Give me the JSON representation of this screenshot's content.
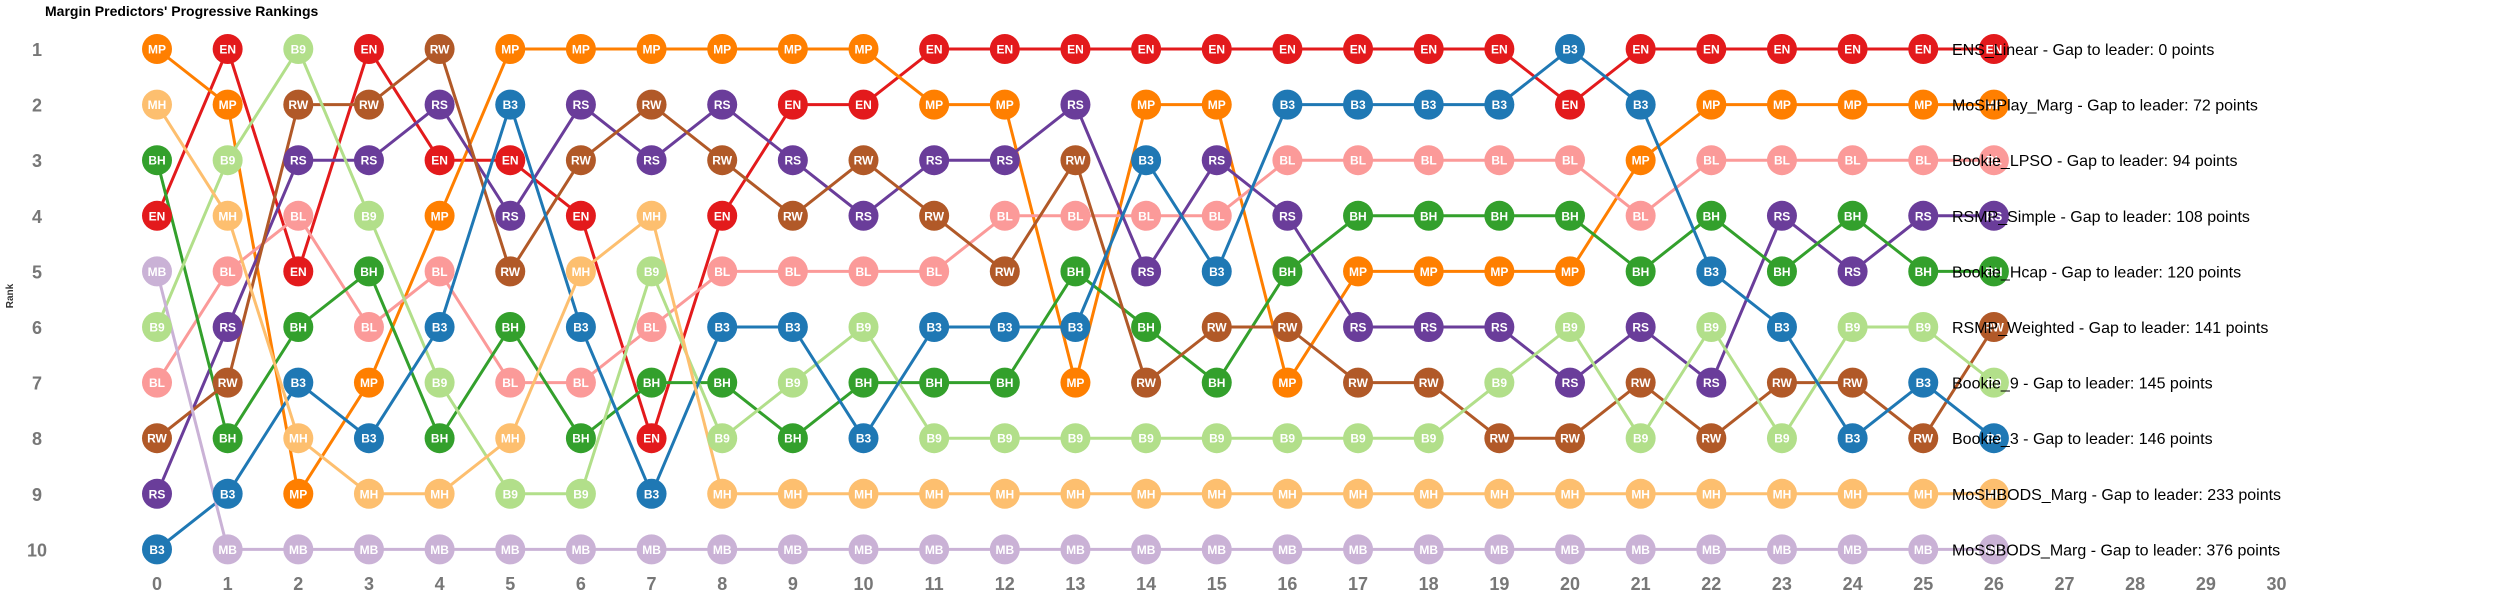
{
  "chart_data": {
    "type": "line",
    "title": "Margin Predictors' Progressive Rankings",
    "ylabel": "Rank",
    "xlabel": "",
    "x_ticks": [
      0,
      1,
      2,
      3,
      4,
      5,
      6,
      7,
      8,
      9,
      10,
      11,
      12,
      13,
      14,
      15,
      16,
      17,
      18,
      19,
      20,
      21,
      22,
      23,
      24,
      25,
      26,
      27,
      28,
      29,
      30
    ],
    "y_ticks": [
      1,
      2,
      3,
      4,
      5,
      6,
      7,
      8,
      9,
      10
    ],
    "xlim": [
      0,
      30
    ],
    "ylim": [
      10,
      1
    ],
    "grid": false,
    "series": [
      {
        "name": "ENS_Linear",
        "code": "EN",
        "color": "#e31a1c",
        "ranks": [
          4,
          1,
          5,
          1,
          3,
          3,
          4,
          8,
          4,
          2,
          2,
          1,
          1,
          1,
          1,
          1,
          1,
          1,
          1,
          1,
          2,
          1,
          1,
          1,
          1,
          1,
          1
        ],
        "legend": "ENS_Linear - Gap to leader: 0 points"
      },
      {
        "name": "MoSHPlay_Marg",
        "code": "MP",
        "color": "#ff7f00",
        "ranks": [
          1,
          2,
          9,
          7,
          4,
          1,
          1,
          1,
          1,
          1,
          1,
          2,
          2,
          7,
          2,
          2,
          7,
          5,
          5,
          5,
          5,
          3,
          2,
          2,
          2,
          2,
          2
        ],
        "legend": "MoSHPlay_Marg - Gap to leader: 72 points"
      },
      {
        "name": "Bookie_LPSO",
        "code": "BL",
        "color": "#fb9a99",
        "ranks": [
          7,
          5,
          4,
          6,
          5,
          7,
          7,
          6,
          5,
          5,
          5,
          5,
          4,
          4,
          4,
          4,
          3,
          3,
          3,
          3,
          3,
          4,
          3,
          3,
          3,
          3,
          3
        ],
        "legend": "Bookie_LPSO - Gap to leader: 94 points"
      },
      {
        "name": "RSMP_Simple",
        "code": "RS",
        "color": "#6a3d9a",
        "ranks": [
          9,
          6,
          3,
          3,
          2,
          4,
          2,
          3,
          2,
          3,
          4,
          3,
          3,
          2,
          5,
          3,
          4,
          6,
          6,
          6,
          7,
          6,
          7,
          4,
          5,
          4,
          4
        ],
        "legend": "RSMP_Simple - Gap to leader: 108 points"
      },
      {
        "name": "Bookie_Hcap",
        "code": "BH",
        "color": "#33a02c",
        "ranks": [
          3,
          8,
          6,
          5,
          8,
          6,
          8,
          7,
          7,
          8,
          7,
          7,
          7,
          5,
          6,
          7,
          5,
          4,
          4,
          4,
          4,
          5,
          4,
          5,
          4,
          5,
          5
        ],
        "legend": "Bookie_Hcap - Gap to leader: 120 points"
      },
      {
        "name": "RSMP_Weighted",
        "code": "RW",
        "color": "#b15928",
        "ranks": [
          8,
          7,
          2,
          2,
          1,
          5,
          3,
          2,
          3,
          4,
          3,
          4,
          5,
          3,
          7,
          6,
          6,
          7,
          7,
          8,
          8,
          7,
          8,
          7,
          7,
          8,
          6
        ],
        "legend": "RSMP_Weighted - Gap to leader: 141 points"
      },
      {
        "name": "Bookie_9",
        "code": "B9",
        "color": "#b2df8a",
        "ranks": [
          6,
          3,
          1,
          4,
          7,
          9,
          9,
          5,
          8,
          7,
          6,
          8,
          8,
          8,
          8,
          8,
          8,
          8,
          8,
          7,
          6,
          8,
          6,
          8,
          6,
          6,
          7
        ],
        "legend": "Bookie_9 - Gap to leader: 145 points"
      },
      {
        "name": "Bookie_3",
        "code": "B3",
        "color": "#1f78b4",
        "ranks": [
          10,
          9,
          7,
          8,
          6,
          2,
          6,
          9,
          6,
          6,
          8,
          6,
          6,
          6,
          3,
          5,
          2,
          2,
          2,
          2,
          1,
          2,
          5,
          6,
          8,
          7,
          8
        ],
        "legend": "Bookie_3 - Gap to leader: 146 points"
      },
      {
        "name": "MoSHBODS_Marg",
        "code": "MH",
        "color": "#fdbf6f",
        "ranks": [
          2,
          4,
          8,
          9,
          9,
          8,
          5,
          4,
          9,
          9,
          9,
          9,
          9,
          9,
          9,
          9,
          9,
          9,
          9,
          9,
          9,
          9,
          9,
          9,
          9,
          9,
          9
        ],
        "legend": "MoSHBODS_Marg - Gap to leader: 233 points"
      },
      {
        "name": "MoSSBODS_Marg",
        "code": "MB",
        "color": "#cab2d6",
        "ranks": [
          5,
          10,
          10,
          10,
          10,
          10,
          10,
          10,
          10,
          10,
          10,
          10,
          10,
          10,
          10,
          10,
          10,
          10,
          10,
          10,
          10,
          10,
          10,
          10,
          10,
          10,
          10
        ],
        "legend": "MoSSBODS_Marg - Gap to leader: 376 points"
      }
    ]
  }
}
